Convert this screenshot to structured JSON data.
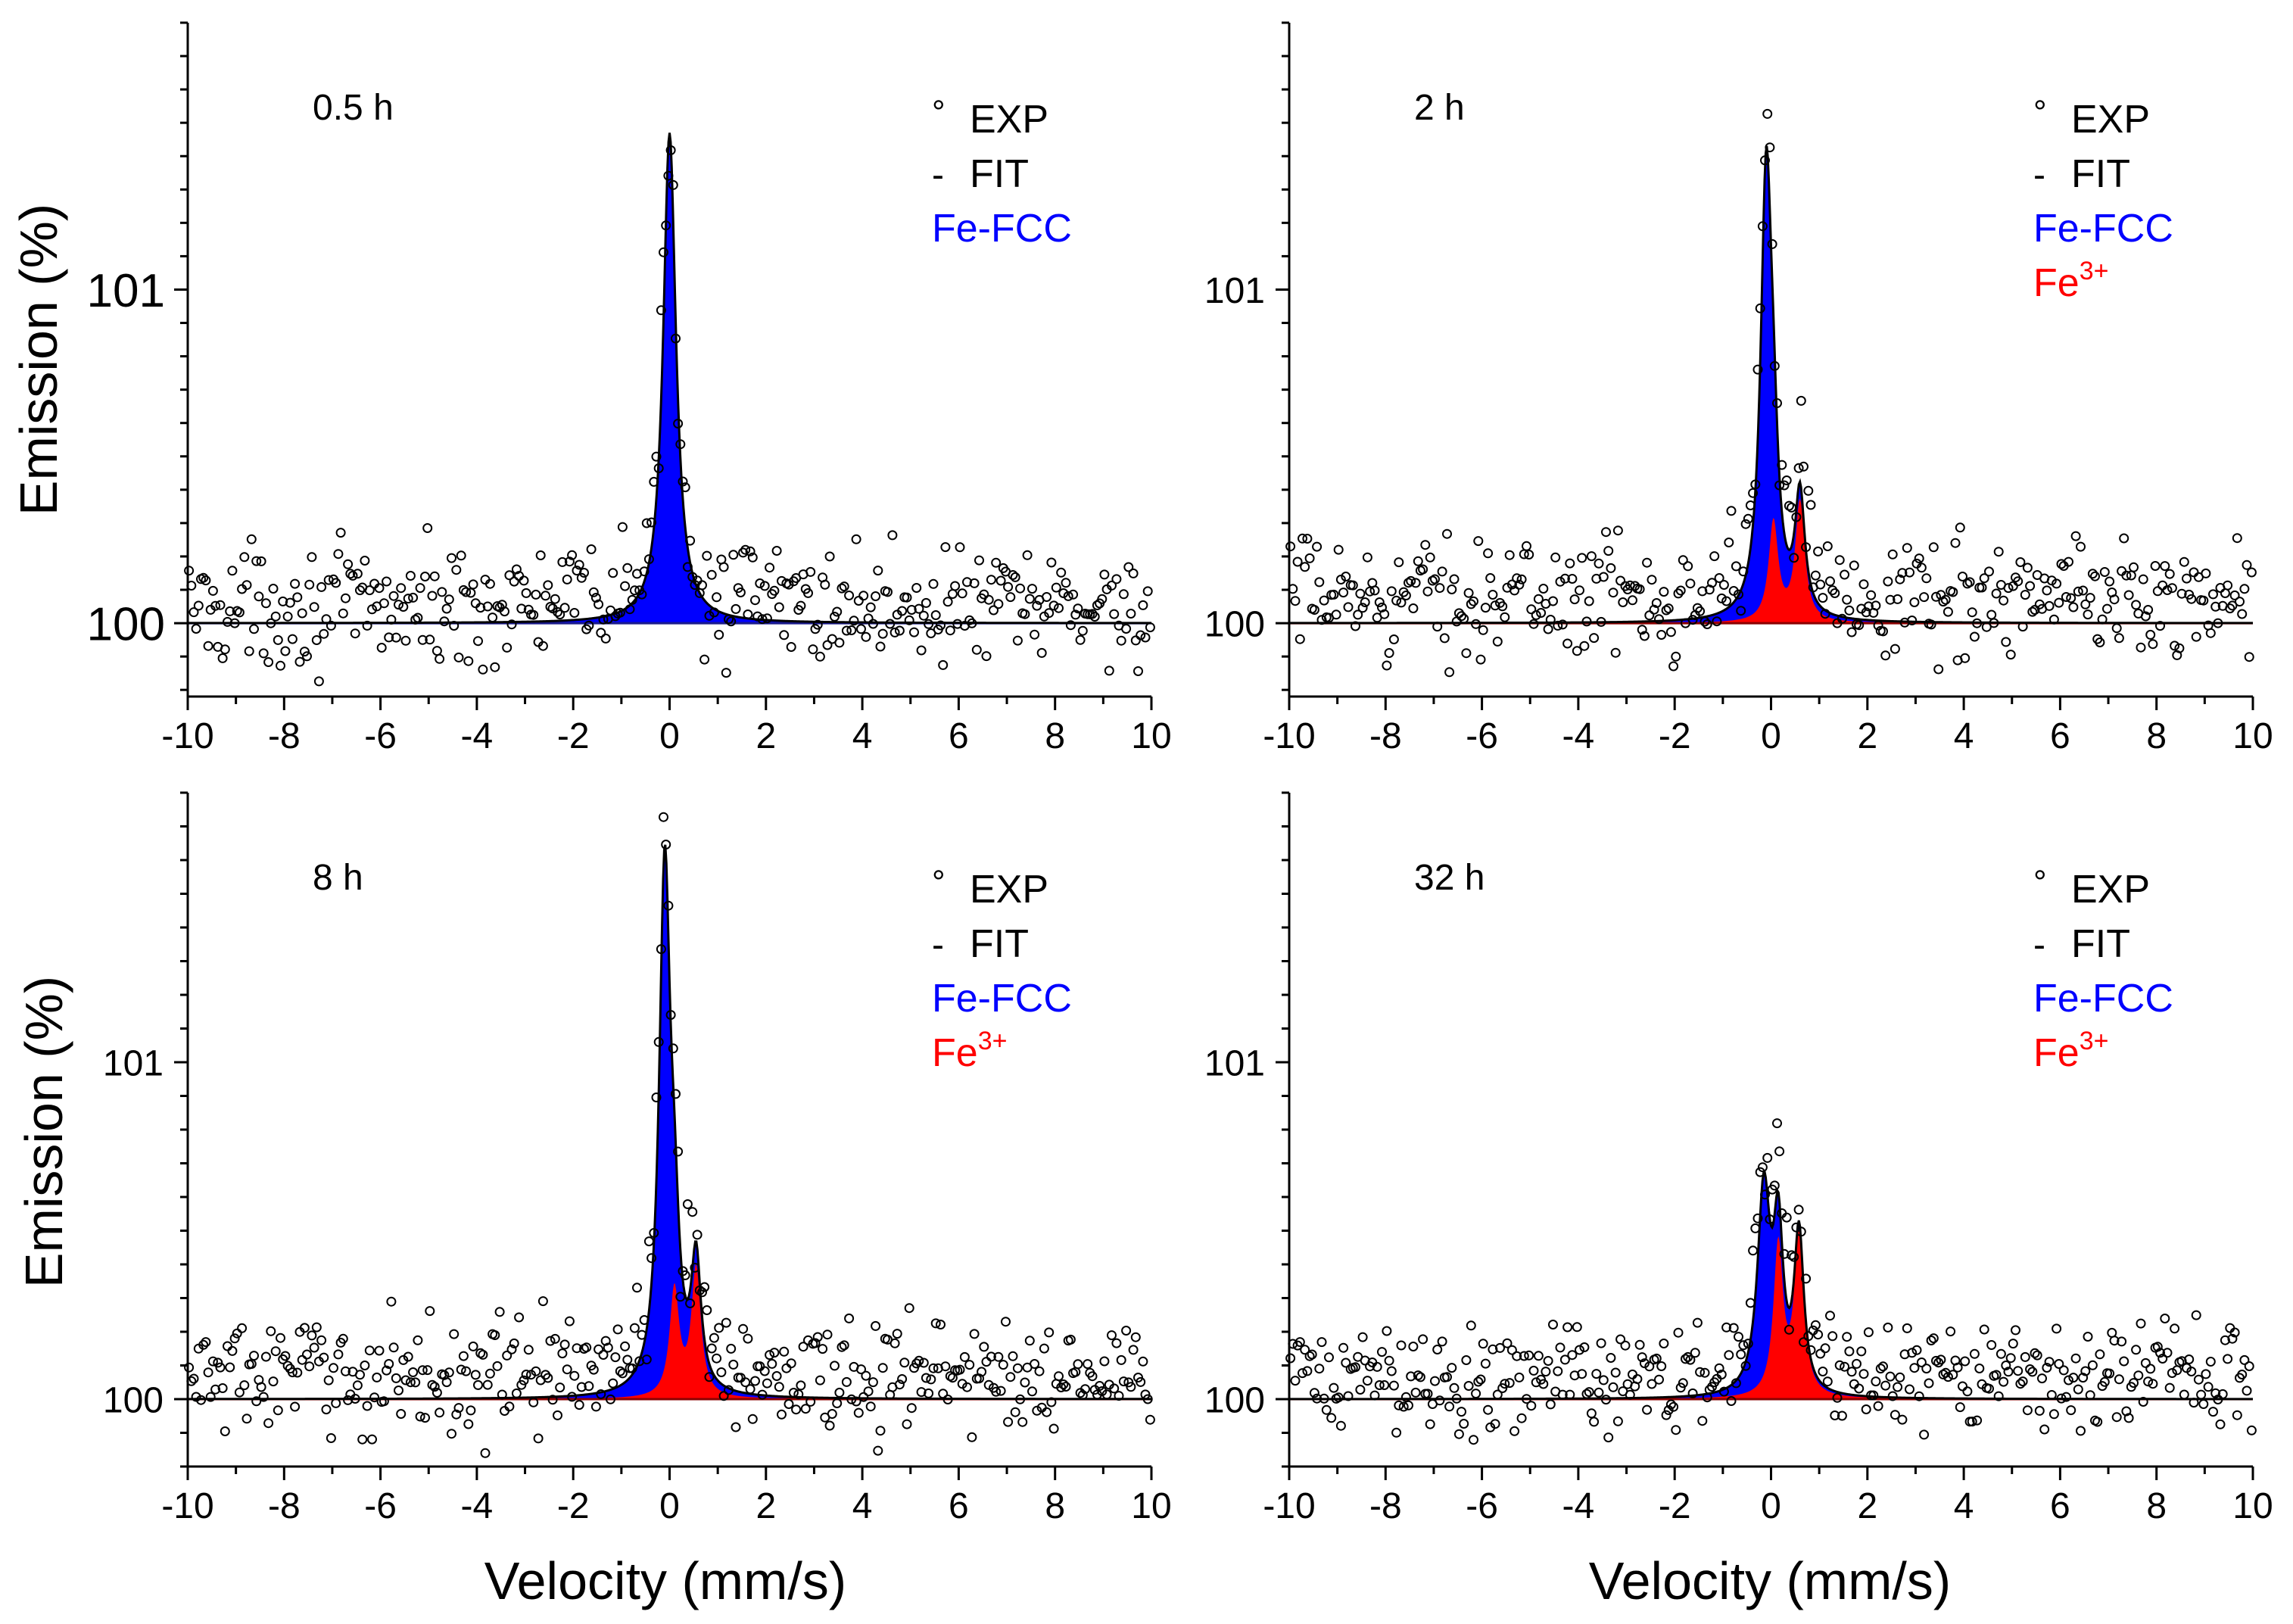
{
  "figure": {
    "xlabel": "Velocity (mm/s)",
    "ylabel": "Emission (%)",
    "legend_labels": {
      "exp": "EXP",
      "fit": "FIT",
      "fcc": "Fe-FCC",
      "fe3_base": "Fe",
      "fe3_sup": "3+"
    },
    "legend_symbols": {
      "exp": "°",
      "fit": "-"
    }
  },
  "colors": {
    "fcc": "#0000FF",
    "fe3": "#FF0000",
    "fit": "#000000",
    "exp": "#000000",
    "baseline_fe3": "#8B0000",
    "baseline_fcc": "#1a1a8c"
  },
  "chart_data": [
    {
      "type": "scatter",
      "panel_label": "0.5 h",
      "xlabel": "",
      "ylabel": "Emission (%)",
      "xlim": [
        -10,
        10
      ],
      "ylim": [
        99.78,
        101.8
      ],
      "xticks": [
        "-10",
        "-8",
        "-6",
        "-4",
        "-2",
        "0",
        "2",
        "4",
        "6",
        "8",
        "10"
      ],
      "yticks": [
        "100",
        "101"
      ],
      "legend": [
        "EXP",
        "FIT",
        "Fe-FCC"
      ],
      "legend_position": "top-right",
      "baseline": 100,
      "components": [
        {
          "name": "Fe-FCC",
          "center": 0.0,
          "amplitude": 1.47,
          "hwhm": 0.16
        }
      ],
      "noise_amplitude": 0.13,
      "noise_offset": 0.05
    },
    {
      "type": "scatter",
      "panel_label": "2 h",
      "xlabel": "",
      "ylabel": "",
      "xlim": [
        -10,
        10
      ],
      "ylim": [
        99.78,
        101.8
      ],
      "xticks": [
        "-10",
        "-8",
        "-6",
        "-4",
        "-2",
        "0",
        "2",
        "4",
        "6",
        "8",
        "10"
      ],
      "yticks": [
        "100",
        "101"
      ],
      "legend": [
        "EXP",
        "FIT",
        "Fe-FCC",
        "Fe3+"
      ],
      "legend_position": "top-right",
      "baseline": 100,
      "components": [
        {
          "name": "Fe-FCC",
          "center": -0.1,
          "amplitude": 1.3,
          "hwhm": 0.14
        },
        {
          "name": "Fe3+",
          "center": 0.05,
          "amplitude": 0.3,
          "hwhm": 0.12
        },
        {
          "name": "Fe3+",
          "center": 0.6,
          "amplitude": 0.36,
          "hwhm": 0.12
        }
      ],
      "noise_amplitude": 0.13,
      "noise_offset": 0.08
    },
    {
      "type": "scatter",
      "panel_label": "8 h",
      "xlabel": "Velocity (mm/s)",
      "ylabel": "Emission (%)",
      "xlim": [
        -10,
        10
      ],
      "ylim": [
        99.8,
        101.8
      ],
      "xticks": [
        "-10",
        "-8",
        "-6",
        "-4",
        "-2",
        "0",
        "2",
        "4",
        "6",
        "8",
        "10"
      ],
      "yticks": [
        "100",
        "101"
      ],
      "legend": [
        "EXP",
        "FIT",
        "Fe-FCC",
        "Fe3+"
      ],
      "legend_position": "top-right",
      "baseline": 100,
      "components": [
        {
          "name": "Fe-FCC",
          "center": -0.1,
          "amplitude": 1.55,
          "hwhm": 0.14
        },
        {
          "name": "Fe3+",
          "center": 0.1,
          "amplitude": 0.32,
          "hwhm": 0.12
        },
        {
          "name": "Fe3+",
          "center": 0.55,
          "amplitude": 0.38,
          "hwhm": 0.12
        }
      ],
      "noise_amplitude": 0.13,
      "noise_offset": 0.07
    },
    {
      "type": "scatter",
      "panel_label": "32 h",
      "xlabel": "Velocity (mm/s)",
      "ylabel": "",
      "xlim": [
        -10,
        10
      ],
      "ylim": [
        99.8,
        101.8
      ],
      "xticks": [
        "-10",
        "-8",
        "-6",
        "-4",
        "-2",
        "0",
        "2",
        "4",
        "6",
        "8",
        "10"
      ],
      "yticks": [
        "100",
        "101"
      ],
      "legend": [
        "EXP",
        "FIT",
        "Fe-FCC",
        "Fe3+"
      ],
      "legend_position": "top-right",
      "baseline": 100,
      "components": [
        {
          "name": "Fe-FCC",
          "center": -0.15,
          "amplitude": 0.6,
          "hwhm": 0.16
        },
        {
          "name": "Fe3+",
          "center": 0.15,
          "amplitude": 0.45,
          "hwhm": 0.12
        },
        {
          "name": "Fe3+",
          "center": 0.58,
          "amplitude": 0.47,
          "hwhm": 0.12
        }
      ],
      "noise_amplitude": 0.12,
      "noise_offset": 0.06
    }
  ]
}
